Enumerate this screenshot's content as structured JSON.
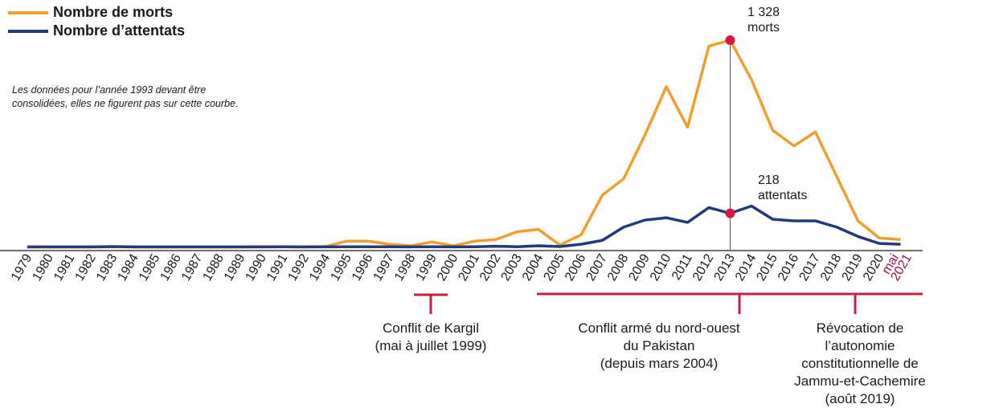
{
  "chart_data": {
    "type": "line",
    "x": [
      "1979",
      "1980",
      "1981",
      "1982",
      "1983",
      "1984",
      "1985",
      "1986",
      "1987",
      "1988",
      "1989",
      "1990",
      "1991",
      "1992",
      "1994",
      "1995",
      "1996",
      "1997",
      "1998",
      "1999",
      "2000",
      "2001",
      "2002",
      "2003",
      "2004",
      "2005",
      "2006",
      "2007",
      "2008",
      "2009",
      "2010",
      "2011",
      "2012",
      "2013",
      "2014",
      "2015",
      "2016",
      "2017",
      "2018",
      "2019",
      "2020",
      "2021"
    ],
    "x_tick_labels": [
      "1979",
      "1980",
      "1981",
      "1982",
      "1983",
      "1984",
      "1985",
      "1986",
      "1987",
      "1988",
      "1989",
      "1990",
      "1991",
      "1992",
      "1994",
      "1995",
      "1996",
      "1997",
      "1998",
      "1999",
      "2000",
      "2001",
      "2002",
      "2003",
      "2004",
      "2005",
      "2006",
      "2007",
      "2008",
      "2009",
      "2010",
      "2011",
      "2012",
      "2013",
      "2014",
      "2015",
      "2016",
      "2017",
      "2018",
      "2019",
      "2020"
    ],
    "last_tick": {
      "line1": "mai",
      "line2": "2021"
    },
    "series": [
      {
        "name": "Nombre de morts",
        "color": "#EE9F2E",
        "values": [
          2,
          2,
          2,
          2,
          4,
          2,
          2,
          2,
          2,
          2,
          2,
          3,
          3,
          2,
          5,
          40,
          40,
          20,
          10,
          35,
          10,
          40,
          50,
          100,
          115,
          15,
          80,
          335,
          440,
          720,
          1030,
          770,
          1290,
          1328,
          1075,
          750,
          650,
          740,
          455,
          170,
          60,
          50
        ]
      },
      {
        "name": "Nombre d’attentats",
        "color": "#213B7A",
        "values": [
          3,
          3,
          3,
          3,
          5,
          3,
          3,
          3,
          3,
          3,
          3,
          3,
          4,
          3,
          3,
          4,
          4,
          4,
          3,
          4,
          3,
          4,
          7,
          4,
          10,
          5,
          20,
          45,
          130,
          175,
          190,
          160,
          255,
          218,
          265,
          180,
          170,
          170,
          130,
          70,
          25,
          20
        ]
      }
    ],
    "ylim": [
      0,
      1400
    ],
    "grid": false,
    "legend": "top-left",
    "highlight_year": "2013",
    "annotations": {
      "deaths": {
        "value": "1 328",
        "unit": "morts"
      },
      "attacks": {
        "value": "218",
        "unit": "attentats"
      },
      "note": "Les données pour l’année 1993 devant être consolidées, elles ne figurent pas sur cette courbe."
    },
    "events": [
      {
        "line1": "Conflit de Kargil",
        "line2": "(mai à juillet 1999)"
      },
      {
        "line1": "Conflit armé du nord-ouest",
        "line2": "du Pakistan",
        "line3": "(depuis mars 2004)"
      },
      {
        "line1": "Révocation de l’autonomie",
        "line2": "constitutionnelle de",
        "line3": "Jammu-et-Cachemire",
        "line4": "(août 2019)"
      }
    ],
    "event_color": "#C5203E",
    "last_tick_color": "#A0114A"
  }
}
